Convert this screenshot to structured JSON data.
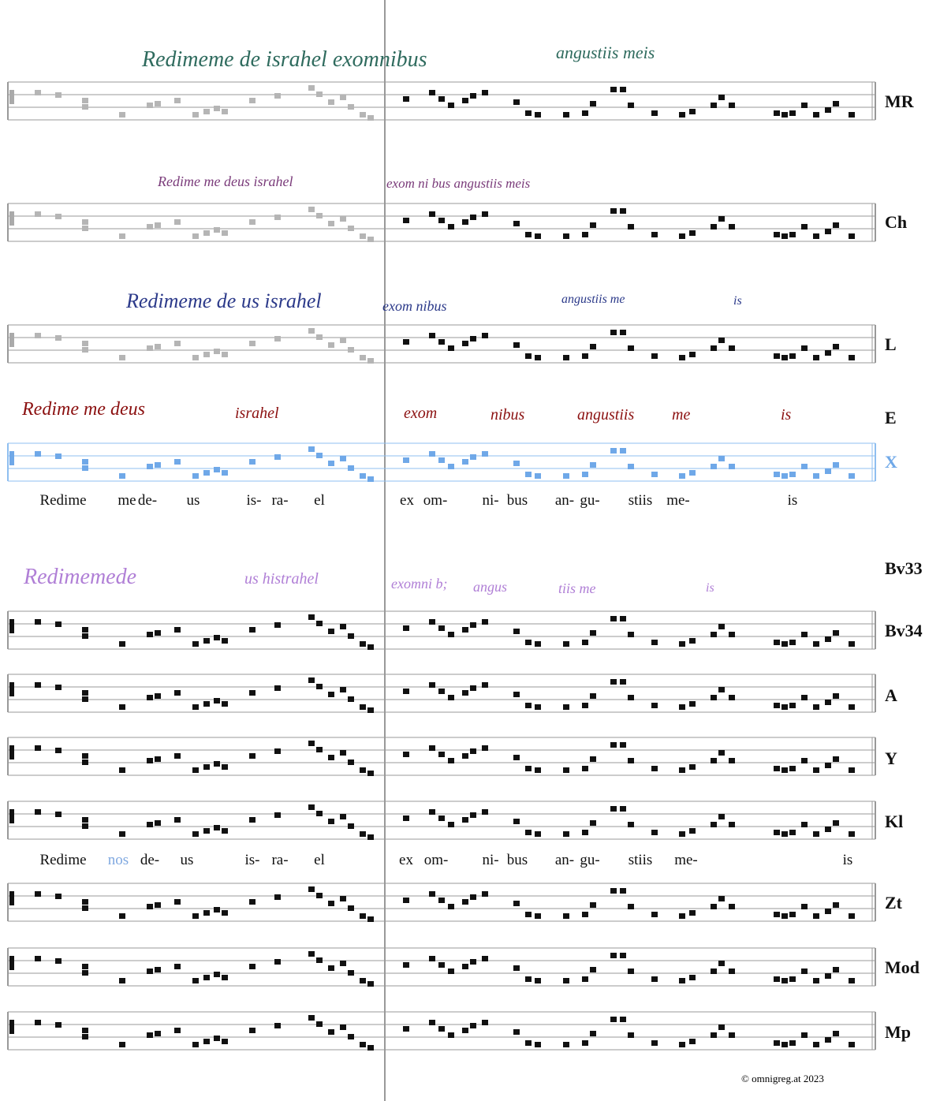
{
  "rows": [
    {
      "label": "MR",
      "manuscript": [
        "Redimeme de israhel exomnibus",
        "angustiis meis"
      ]
    },
    {
      "label": "Ch",
      "manuscript": [
        "Redime me deus israhel",
        "exom ni bus angustiis meis"
      ]
    },
    {
      "label": "L",
      "manuscript": [
        "Redimeme de us israhel",
        "exom nibus",
        "angustiis me",
        "is"
      ]
    },
    {
      "label": "E",
      "manuscript": [
        "Redime me deus",
        "israhel",
        "exom",
        "nibus",
        "angustiis",
        "me",
        "is"
      ]
    },
    {
      "label": "X",
      "manuscript": []
    },
    {
      "label": "Bv33",
      "manuscript": [
        "Redimemede",
        "us histrahel",
        "exomni b;",
        "angus",
        "tiis me",
        "is"
      ]
    },
    {
      "label": "Bv34",
      "manuscript": []
    },
    {
      "label": "A",
      "manuscript": []
    },
    {
      "label": "Y",
      "manuscript": []
    },
    {
      "label": "Kl",
      "manuscript": []
    },
    {
      "label": "Zt",
      "manuscript": []
    },
    {
      "label": "Mod",
      "manuscript": []
    },
    {
      "label": "Mp",
      "manuscript": []
    }
  ],
  "lyrics": [
    [
      "Redime",
      "me",
      "de-",
      "us",
      "is-",
      "ra-",
      "el",
      "ex",
      "om-",
      "ni-",
      "bus",
      "an-",
      "gu-",
      "stiis",
      "me-",
      "is"
    ],
    [
      "Redime",
      "nos",
      "de-",
      "us",
      "is-",
      "ra-",
      "el",
      "ex",
      "om-",
      "ni-",
      "bus",
      "an-",
      "gu-",
      "stiis",
      "me-",
      "is"
    ]
  ],
  "footer": "© omnigreg.at 2023"
}
